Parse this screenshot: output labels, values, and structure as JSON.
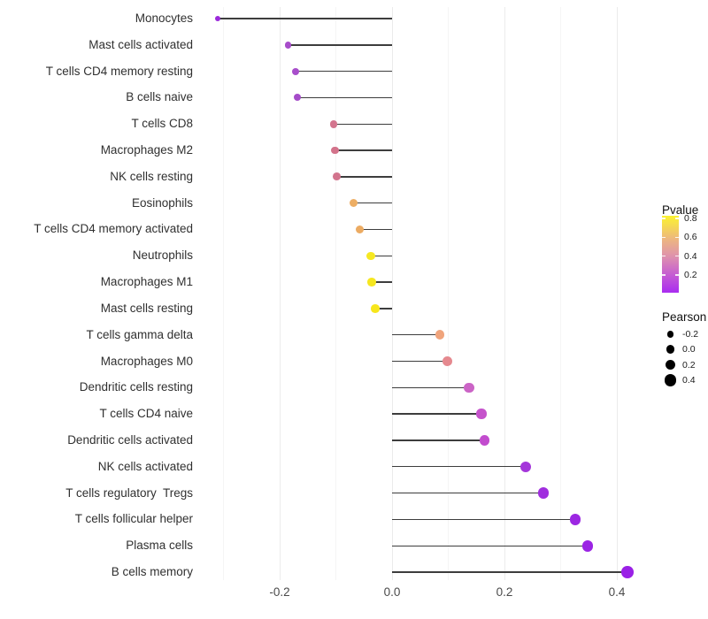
{
  "chart_data": {
    "type": "scatter",
    "variant": "lollipop",
    "title": "",
    "xlabel": "",
    "ylabel": "",
    "xlim": [
      -0.33,
      0.47
    ],
    "grid": "on",
    "x_ticks": [
      {
        "value": -0.2,
        "label": "-0.2"
      },
      {
        "value": 0.0,
        "label": "0.0"
      },
      {
        "value": 0.2,
        "label": "0.2"
      },
      {
        "value": 0.4,
        "label": "0.4"
      }
    ],
    "gridline_values": [
      -0.3,
      -0.2,
      -0.1,
      0.0,
      0.1,
      0.2,
      0.3,
      0.4
    ],
    "points": [
      {
        "label": "Monocytes",
        "pearson": -0.31,
        "pvalue": 0.08,
        "color": "#9B2ADB"
      },
      {
        "label": "Mast cells activated",
        "pearson": -0.185,
        "pvalue": 0.18,
        "color": "#A74CCA"
      },
      {
        "label": "T cells CD4 memory resting",
        "pearson": -0.172,
        "pvalue": 0.19,
        "color": "#A84ECB"
      },
      {
        "label": "B cells naive",
        "pearson": -0.168,
        "pvalue": 0.18,
        "color": "#A54CC9"
      },
      {
        "label": "T cells CD8",
        "pearson": -0.104,
        "pvalue": 0.45,
        "color": "#D3758E"
      },
      {
        "label": "Macrophages M2",
        "pearson": -0.102,
        "pvalue": 0.44,
        "color": "#D3738B"
      },
      {
        "label": "NK cells resting",
        "pearson": -0.098,
        "pvalue": 0.45,
        "color": "#D2748D"
      },
      {
        "label": "Eosinophils",
        "pearson": -0.068,
        "pvalue": 0.63,
        "color": "#EDAE64"
      },
      {
        "label": "T cells CD4 memory activated",
        "pearson": -0.058,
        "pvalue": 0.62,
        "color": "#ECAB62"
      },
      {
        "label": "Neutrophils",
        "pearson": -0.038,
        "pvalue": 0.8,
        "color": "#F6E822"
      },
      {
        "label": "Macrophages M1",
        "pearson": -0.036,
        "pvalue": 0.8,
        "color": "#F6E71F"
      },
      {
        "label": "Mast cells resting",
        "pearson": -0.03,
        "pvalue": 0.81,
        "color": "#F7E61C"
      },
      {
        "label": "T cells gamma delta",
        "pearson": 0.085,
        "pvalue": 0.58,
        "color": "#F0A47C"
      },
      {
        "label": "Macrophages M0",
        "pearson": 0.099,
        "pvalue": 0.5,
        "color": "#E5898F"
      },
      {
        "label": "Dendritic cells resting",
        "pearson": 0.137,
        "pvalue": 0.27,
        "color": "#CB64C6"
      },
      {
        "label": "T cells CD4 naive",
        "pearson": 0.159,
        "pvalue": 0.23,
        "color": "#C553CB"
      },
      {
        "label": "Dendritic cells activated",
        "pearson": 0.165,
        "pvalue": 0.21,
        "color": "#C24CCE"
      },
      {
        "label": "NK cells activated",
        "pearson": 0.238,
        "pvalue": 0.12,
        "color": "#A436DA"
      },
      {
        "label": "T cells regulatory  Tregs",
        "pearson": 0.269,
        "pvalue": 0.1,
        "color": "#A02EDE"
      },
      {
        "label": "T cells follicular helper",
        "pearson": 0.326,
        "pvalue": 0.06,
        "color": "#9C27E2"
      },
      {
        "label": "Plasma cells",
        "pearson": 0.348,
        "pvalue": 0.05,
        "color": "#9B24E4"
      },
      {
        "label": "B cells memory",
        "pearson": 0.419,
        "pvalue": 0.04,
        "color": "#9A21E6"
      }
    ],
    "legend": {
      "color": {
        "title": "Pvalue",
        "position": "right",
        "tick_labels": [
          "0.8",
          "0.6",
          "0.4",
          "0.2"
        ],
        "range": [
          0.0,
          0.82
        ],
        "gradient_stops": [
          "#A92CF0 0%",
          "#C45AD4 22%",
          "#DF93AC 48%",
          "#EDB77F 70%",
          "#F6DC4E 88%",
          "#FBF232 100%"
        ]
      },
      "size": {
        "title": "Pearson",
        "position": "right",
        "items": [
          {
            "value": -0.2,
            "label": "-0.2"
          },
          {
            "value": 0.0,
            "label": "0.0"
          },
          {
            "value": 0.2,
            "label": "0.2"
          },
          {
            "value": 0.4,
            "label": "0.4"
          }
        ],
        "dot_color": "#000000"
      }
    },
    "stem_color": "#3d3d3d",
    "background": "#ffffff"
  }
}
